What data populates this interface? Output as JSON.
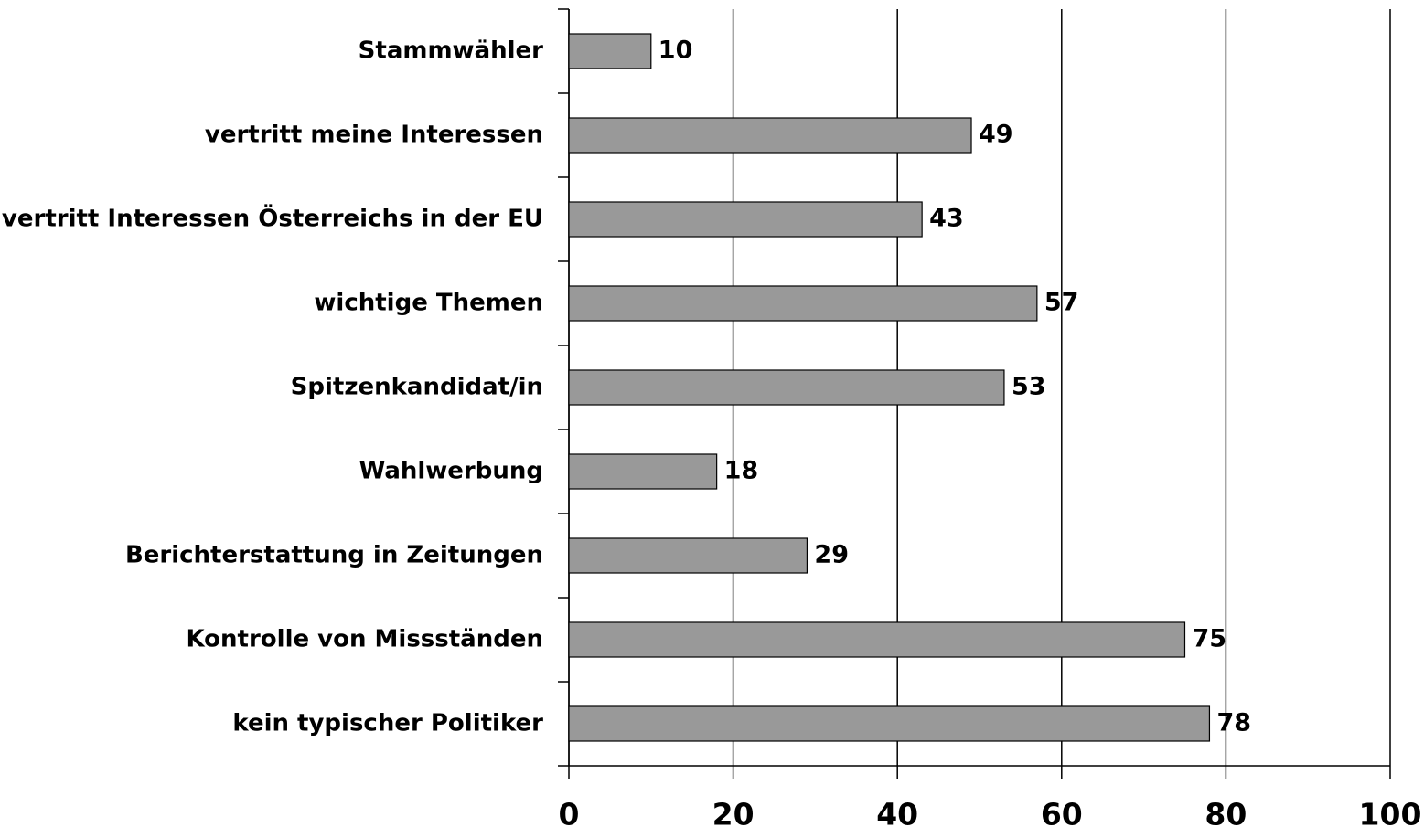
{
  "chart_data": {
    "type": "bar",
    "orientation": "horizontal",
    "categories": [
      "Stammwähler",
      "vertritt meine Interessen",
      "vertritt Interessen Österreichs in der EU",
      "wichtige Themen",
      "Spitzenkandidat/in",
      "Wahlwerbung",
      "Berichterstattung in Zeitungen",
      "Kontrolle von Missständen",
      "kein typischer Politiker"
    ],
    "values": [
      10,
      49,
      43,
      57,
      53,
      18,
      29,
      75,
      78
    ],
    "color": "#999999",
    "xlim": [
      0,
      100
    ],
    "xticks": [
      0,
      20,
      40,
      60,
      80,
      100
    ],
    "grid": true
  }
}
